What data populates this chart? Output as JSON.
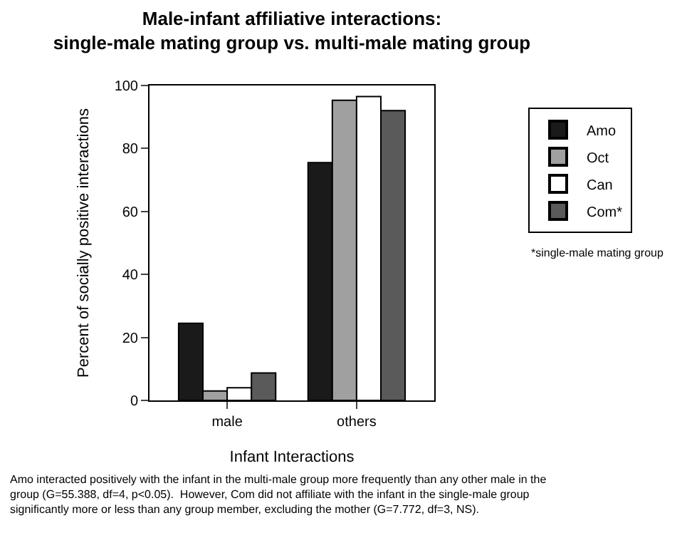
{
  "chart_data": {
    "type": "bar",
    "title": "Male-infant affiliative interactions:\nsingle-male mating group vs. multi-male mating group",
    "xlabel": "Infant Interactions",
    "ylabel": "Percent of socially positive interactions",
    "categories": [
      "male",
      "others"
    ],
    "series": [
      {
        "name": "Amo",
        "color": "#1a1a1a",
        "values": [
          24.5,
          75.5
        ]
      },
      {
        "name": "Oct",
        "color": "#a0a0a0",
        "values": [
          3,
          95.3
        ]
      },
      {
        "name": "Can",
        "color": "#ffffff",
        "values": [
          4,
          96.5
        ]
      },
      {
        "name": "Com*",
        "color": "#5a5a5a",
        "values": [
          8.7,
          92
        ]
      }
    ],
    "ylim": [
      0,
      100
    ],
    "yticks": [
      0,
      20,
      40,
      60,
      80,
      100
    ],
    "legend": "right",
    "annotations": [
      "*single-male mating group",
      "Amo interacted positively with the infant in the multi-male group more frequently than any other male in the\ngroup (G=55.388, df=4, p<0.05).  However, Com did not affiliate with the infant in the single-male group\nsignificantly more or less than any group member, excluding the mother (G=7.772, df=3, NS)."
    ]
  }
}
